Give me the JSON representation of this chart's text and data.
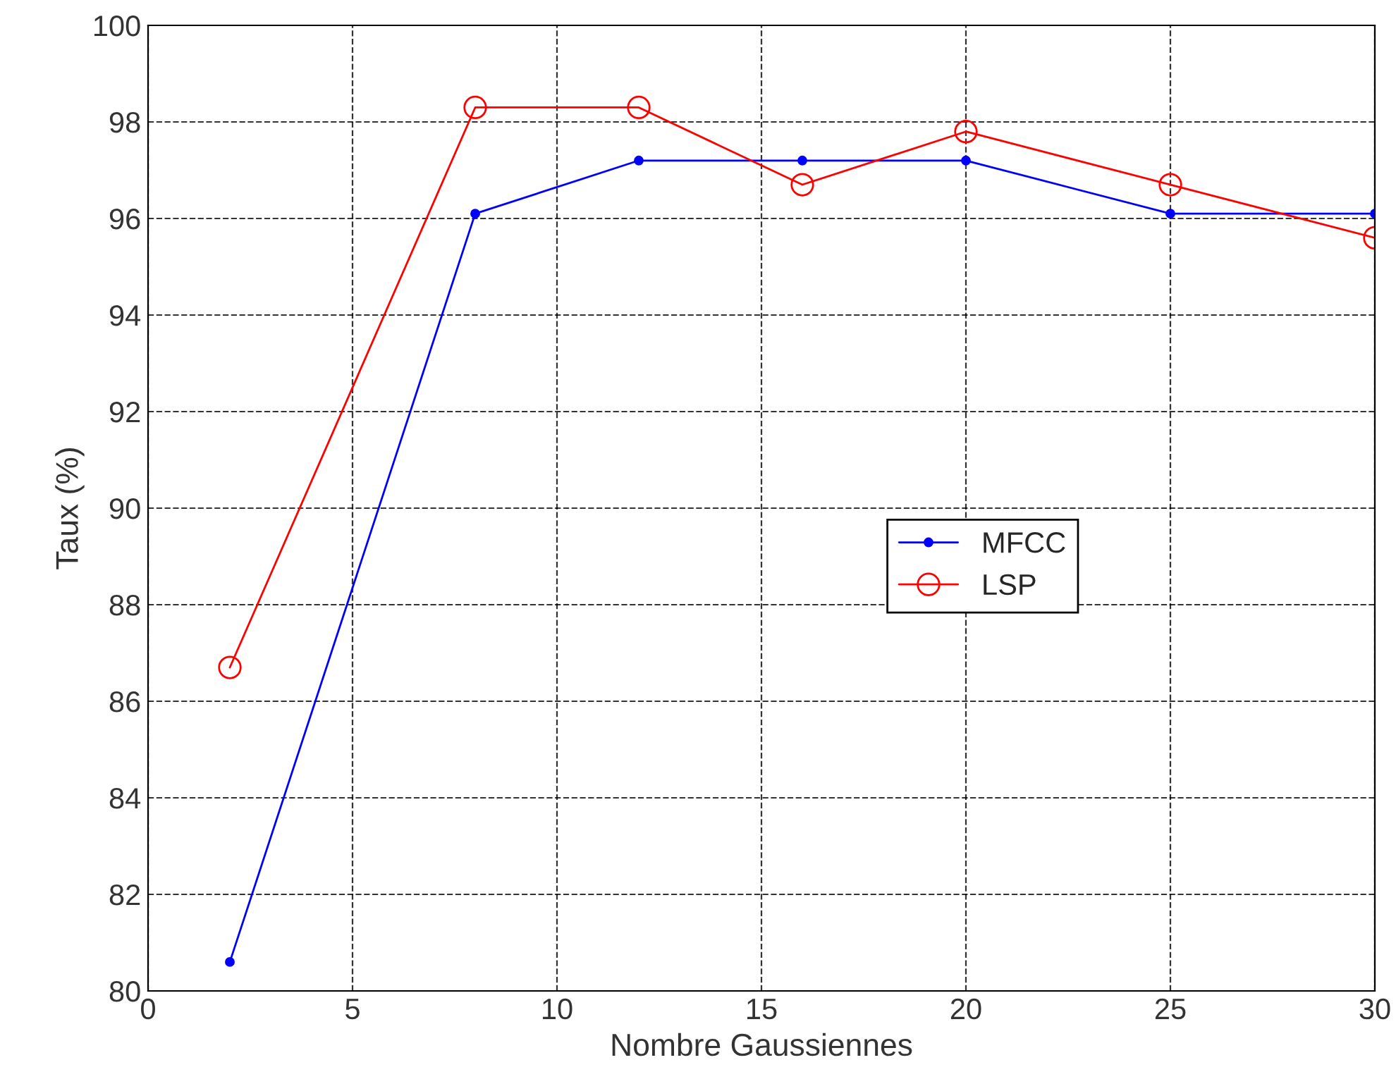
{
  "chart_data": {
    "type": "line",
    "xlabel": "Nombre Gaussiennes",
    "ylabel": "Taux (%)",
    "x": [
      2,
      8,
      12,
      16,
      20,
      25,
      30
    ],
    "series": [
      {
        "name": "MFCC",
        "color": "#0000ff",
        "marker": "circle",
        "values": [
          80.6,
          96.1,
          97.2,
          97.2,
          97.2,
          96.1,
          96.1
        ]
      },
      {
        "name": "LSP",
        "color": "#ff0000",
        "marker": "circle",
        "values": [
          86.7,
          98.3,
          98.3,
          96.7,
          97.8,
          96.7,
          95.6
        ]
      }
    ],
    "xlim": [
      0,
      30
    ],
    "xticks": [
      0,
      5,
      10,
      15,
      20,
      25,
      30
    ],
    "ylim": [
      80,
      100
    ],
    "yticks": [
      80,
      82,
      84,
      86,
      88,
      90,
      92,
      94,
      96,
      98,
      100
    ],
    "grid": true,
    "legend": "right",
    "line_style": "solid"
  }
}
